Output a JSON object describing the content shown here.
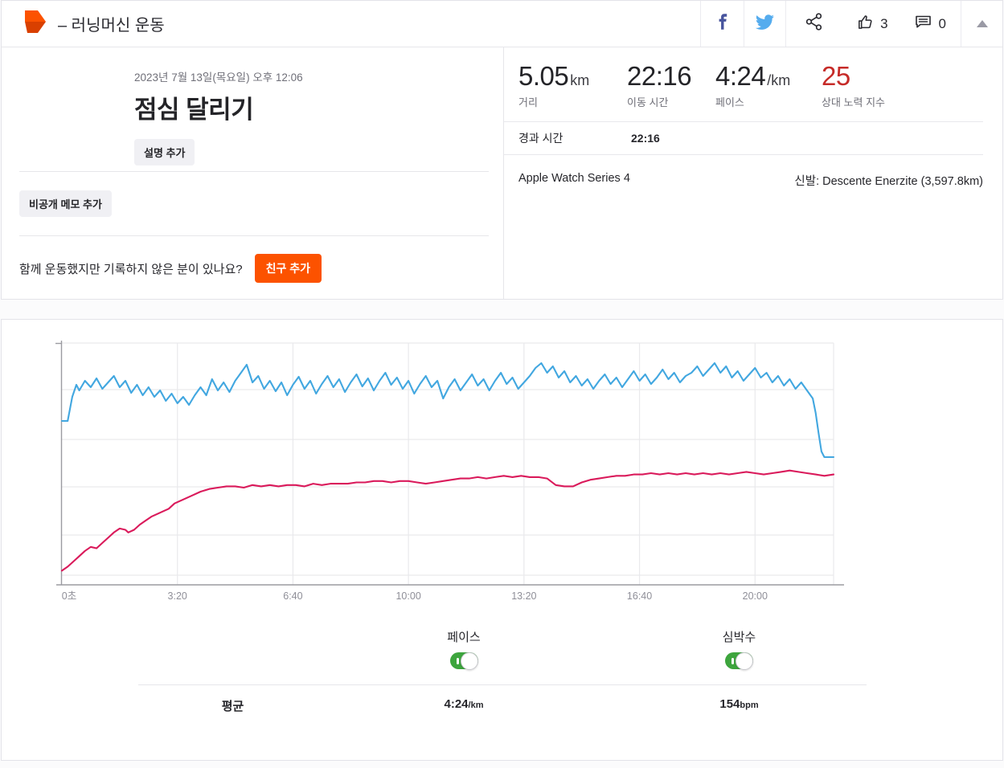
{
  "header": {
    "activity_type_label": "– 러닝머신 운동",
    "kudos_count": "3",
    "comment_count": "0",
    "icons": [
      "strava-logo-icon",
      "facebook-icon",
      "twitter-icon",
      "share-icon",
      "kudos-thumb-icon",
      "comment-bubble-icon",
      "collapse-arrow-icon"
    ],
    "brand_colors": {
      "strava_orange": "#fc5200",
      "facebook_blue": "#47549d",
      "twitter_blue": "#55acee"
    }
  },
  "summary": {
    "date": "2023년 7월 13일(목요일) 오후 12:06",
    "title": "점심 달리기",
    "add_description_label": "설명 추가",
    "add_private_note_label": "비공개 메모 추가",
    "friend_prompt": "함께 운동했지만 기록하지 않은 분이 있나요?",
    "add_friend_label": "친구 추가",
    "stats": [
      {
        "value": "5.05",
        "unit": "km",
        "label": "거리"
      },
      {
        "value": "22:16",
        "unit": "",
        "label": "이동 시간"
      },
      {
        "value": "4:24",
        "unit": "/km",
        "label": "페이스"
      },
      {
        "value": "25",
        "unit": "",
        "label": "상대 노력 지수",
        "color": "#c62b28"
      }
    ],
    "elapsed": {
      "label": "경과 시간",
      "value": "22:16"
    },
    "device": "Apple Watch Series 4",
    "shoes": "신발: Descente Enerzite (3,597.8km)"
  },
  "legend": {
    "pace_label": "페이스",
    "hr_label": "심박수",
    "avg_label": "평균",
    "avg_pace_value": "4:24",
    "avg_pace_unit": "/km",
    "avg_hr_value": "154",
    "avg_hr_unit": "bpm",
    "toggle_on_color": "#3da53d"
  },
  "chart_data": {
    "type": "line",
    "title": "",
    "xlabel": "",
    "ylabel": "",
    "x_ticks": [
      "0초",
      "3:20",
      "6:40",
      "10:00",
      "13:20",
      "16:40",
      "20:00"
    ],
    "x_tick_seconds": [
      0,
      200,
      400,
      600,
      800,
      1000,
      1200
    ],
    "x_max_seconds": 1336,
    "grid": true,
    "legend_position": "below",
    "series": [
      {
        "name": "페이스",
        "unit": "sec/km",
        "color": "#42a7e0",
        "avg": "4:24/km",
        "points": [
          [
            0,
            300
          ],
          [
            10,
            300
          ],
          [
            18,
            270
          ],
          [
            25,
            255
          ],
          [
            30,
            262
          ],
          [
            40,
            250
          ],
          [
            50,
            258
          ],
          [
            60,
            247
          ],
          [
            70,
            260
          ],
          [
            80,
            252
          ],
          [
            90,
            244
          ],
          [
            100,
            258
          ],
          [
            110,
            250
          ],
          [
            120,
            265
          ],
          [
            130,
            255
          ],
          [
            140,
            268
          ],
          [
            150,
            258
          ],
          [
            160,
            270
          ],
          [
            170,
            262
          ],
          [
            180,
            275
          ],
          [
            190,
            266
          ],
          [
            200,
            278
          ],
          [
            210,
            270
          ],
          [
            220,
            280
          ],
          [
            230,
            268
          ],
          [
            240,
            258
          ],
          [
            250,
            268
          ],
          [
            260,
            248
          ],
          [
            270,
            262
          ],
          [
            280,
            252
          ],
          [
            290,
            264
          ],
          [
            300,
            250
          ],
          [
            310,
            240
          ],
          [
            320,
            230
          ],
          [
            330,
            252
          ],
          [
            340,
            244
          ],
          [
            350,
            260
          ],
          [
            360,
            250
          ],
          [
            370,
            263
          ],
          [
            380,
            252
          ],
          [
            390,
            268
          ],
          [
            400,
            255
          ],
          [
            410,
            245
          ],
          [
            420,
            260
          ],
          [
            430,
            250
          ],
          [
            440,
            266
          ],
          [
            450,
            254
          ],
          [
            460,
            244
          ],
          [
            470,
            258
          ],
          [
            480,
            248
          ],
          [
            490,
            264
          ],
          [
            500,
            252
          ],
          [
            510,
            242
          ],
          [
            520,
            257
          ],
          [
            530,
            247
          ],
          [
            540,
            262
          ],
          [
            550,
            250
          ],
          [
            560,
            240
          ],
          [
            570,
            255
          ],
          [
            580,
            246
          ],
          [
            590,
            260
          ],
          [
            600,
            250
          ],
          [
            610,
            266
          ],
          [
            620,
            254
          ],
          [
            630,
            244
          ],
          [
            640,
            258
          ],
          [
            650,
            250
          ],
          [
            660,
            272
          ],
          [
            670,
            258
          ],
          [
            680,
            248
          ],
          [
            690,
            262
          ],
          [
            700,
            252
          ],
          [
            710,
            242
          ],
          [
            720,
            256
          ],
          [
            730,
            248
          ],
          [
            740,
            262
          ],
          [
            750,
            250
          ],
          [
            760,
            240
          ],
          [
            770,
            254
          ],
          [
            780,
            246
          ],
          [
            790,
            260
          ],
          [
            800,
            252
          ],
          [
            810,
            244
          ],
          [
            820,
            234
          ],
          [
            830,
            228
          ],
          [
            840,
            240
          ],
          [
            850,
            232
          ],
          [
            860,
            246
          ],
          [
            870,
            238
          ],
          [
            880,
            252
          ],
          [
            890,
            244
          ],
          [
            900,
            256
          ],
          [
            910,
            248
          ],
          [
            920,
            260
          ],
          [
            930,
            250
          ],
          [
            940,
            242
          ],
          [
            950,
            254
          ],
          [
            960,
            246
          ],
          [
            970,
            258
          ],
          [
            980,
            248
          ],
          [
            990,
            238
          ],
          [
            1000,
            250
          ],
          [
            1010,
            242
          ],
          [
            1020,
            254
          ],
          [
            1030,
            246
          ],
          [
            1040,
            236
          ],
          [
            1050,
            248
          ],
          [
            1060,
            240
          ],
          [
            1070,
            252
          ],
          [
            1080,
            244
          ],
          [
            1090,
            240
          ],
          [
            1100,
            232
          ],
          [
            1110,
            244
          ],
          [
            1120,
            236
          ],
          [
            1130,
            228
          ],
          [
            1140,
            240
          ],
          [
            1150,
            232
          ],
          [
            1160,
            246
          ],
          [
            1170,
            238
          ],
          [
            1180,
            250
          ],
          [
            1190,
            242
          ],
          [
            1200,
            234
          ],
          [
            1210,
            246
          ],
          [
            1220,
            240
          ],
          [
            1230,
            252
          ],
          [
            1240,
            244
          ],
          [
            1250,
            256
          ],
          [
            1260,
            248
          ],
          [
            1270,
            260
          ],
          [
            1280,
            252
          ],
          [
            1290,
            262
          ],
          [
            1300,
            272
          ],
          [
            1305,
            290
          ],
          [
            1310,
            315
          ],
          [
            1315,
            338
          ],
          [
            1320,
            345
          ],
          [
            1336,
            345
          ]
        ]
      },
      {
        "name": "심박수",
        "unit": "bpm",
        "color": "#da1a5b",
        "avg": "154bpm",
        "points": [
          [
            0,
            86
          ],
          [
            10,
            89
          ],
          [
            20,
            93
          ],
          [
            30,
            97
          ],
          [
            40,
            101
          ],
          [
            50,
            104
          ],
          [
            60,
            103
          ],
          [
            70,
            107
          ],
          [
            80,
            111
          ],
          [
            90,
            115
          ],
          [
            100,
            118
          ],
          [
            110,
            117
          ],
          [
            115,
            115
          ],
          [
            125,
            117
          ],
          [
            135,
            121
          ],
          [
            145,
            124
          ],
          [
            155,
            127
          ],
          [
            165,
            129
          ],
          [
            175,
            131
          ],
          [
            185,
            133
          ],
          [
            195,
            137
          ],
          [
            210,
            140
          ],
          [
            225,
            143
          ],
          [
            240,
            146
          ],
          [
            255,
            148
          ],
          [
            270,
            149
          ],
          [
            285,
            150
          ],
          [
            300,
            150
          ],
          [
            315,
            149
          ],
          [
            330,
            151
          ],
          [
            345,
            150
          ],
          [
            360,
            151
          ],
          [
            375,
            150
          ],
          [
            390,
            151
          ],
          [
            405,
            151
          ],
          [
            420,
            150
          ],
          [
            435,
            152
          ],
          [
            450,
            151
          ],
          [
            465,
            152
          ],
          [
            480,
            152
          ],
          [
            495,
            152
          ],
          [
            510,
            153
          ],
          [
            525,
            153
          ],
          [
            540,
            154
          ],
          [
            555,
            154
          ],
          [
            570,
            153
          ],
          [
            585,
            154
          ],
          [
            600,
            154
          ],
          [
            615,
            153
          ],
          [
            630,
            152
          ],
          [
            645,
            153
          ],
          [
            660,
            154
          ],
          [
            675,
            155
          ],
          [
            690,
            156
          ],
          [
            705,
            156
          ],
          [
            720,
            157
          ],
          [
            735,
            156
          ],
          [
            750,
            157
          ],
          [
            765,
            158
          ],
          [
            780,
            157
          ],
          [
            795,
            158
          ],
          [
            810,
            157
          ],
          [
            825,
            157
          ],
          [
            840,
            156
          ],
          [
            855,
            151
          ],
          [
            870,
            150
          ],
          [
            885,
            150
          ],
          [
            900,
            153
          ],
          [
            915,
            155
          ],
          [
            930,
            156
          ],
          [
            945,
            157
          ],
          [
            960,
            158
          ],
          [
            975,
            158
          ],
          [
            990,
            159
          ],
          [
            1005,
            159
          ],
          [
            1020,
            160
          ],
          [
            1035,
            159
          ],
          [
            1050,
            160
          ],
          [
            1065,
            159
          ],
          [
            1080,
            160
          ],
          [
            1095,
            159
          ],
          [
            1110,
            160
          ],
          [
            1125,
            159
          ],
          [
            1140,
            160
          ],
          [
            1155,
            159
          ],
          [
            1170,
            160
          ],
          [
            1185,
            161
          ],
          [
            1200,
            160
          ],
          [
            1215,
            159
          ],
          [
            1230,
            160
          ],
          [
            1245,
            161
          ],
          [
            1260,
            162
          ],
          [
            1275,
            161
          ],
          [
            1290,
            160
          ],
          [
            1305,
            159
          ],
          [
            1320,
            158
          ],
          [
            1336,
            159
          ]
        ]
      }
    ]
  }
}
